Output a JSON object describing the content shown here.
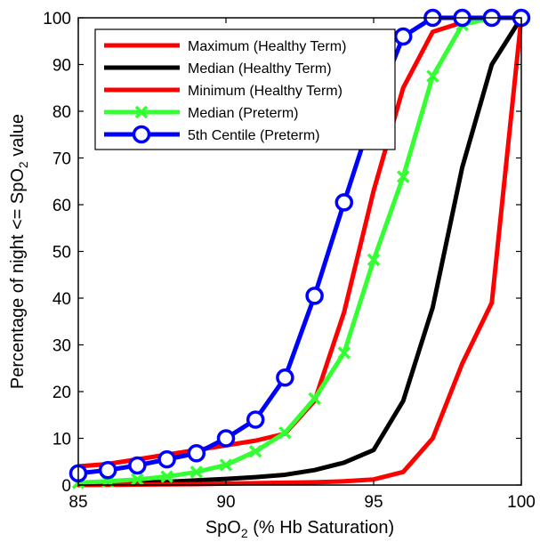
{
  "chart_data": {
    "type": "line",
    "title": "",
    "xlabel": "SpO",
    "xlabel_sub": "2",
    "xlabel_suffix": " (% Hb Saturation)",
    "ylabel_prefix": "Percentage of night <= SpO",
    "ylabel_sub": "2",
    "ylabel_suffix": " value",
    "xlim": [
      85,
      100
    ],
    "ylim": [
      0,
      100
    ],
    "xticks": [
      85,
      90,
      95,
      100
    ],
    "yticks": [
      0,
      10,
      20,
      30,
      40,
      50,
      60,
      70,
      80,
      90,
      100
    ],
    "grid": false,
    "legend_position": "top-left",
    "x": [
      85,
      86,
      87,
      88,
      89,
      90,
      91,
      92,
      93,
      94,
      95,
      96,
      97,
      98,
      99,
      100
    ],
    "series": [
      {
        "name": "Maximum (Healthy Term)",
        "color": "#ff0000",
        "marker": "none",
        "values": [
          4,
          4.5,
          5.5,
          6.5,
          7.5,
          8.5,
          9.5,
          11,
          18,
          37,
          63,
          85,
          97,
          99,
          100,
          100
        ]
      },
      {
        "name": "Median (Healthy Term)",
        "color": "#000000",
        "marker": "none",
        "values": [
          0.2,
          0.3,
          0.5,
          0.7,
          1,
          1.3,
          1.7,
          2.2,
          3.2,
          4.8,
          7.5,
          18,
          38,
          68,
          90,
          100
        ]
      },
      {
        "name": "Minimum (Healthy Term)",
        "color": "#ff0000",
        "marker": "none",
        "values": [
          0,
          0.05,
          0.1,
          0.15,
          0.2,
          0.3,
          0.4,
          0.5,
          0.6,
          0.8,
          1.2,
          2.8,
          10,
          26,
          39,
          100
        ]
      },
      {
        "name": "Median (Preterm)",
        "color": "#33ff33",
        "marker": "x",
        "values": [
          0.5,
          0.8,
          1.2,
          1.8,
          2.8,
          4.3,
          7.2,
          11.2,
          18.5,
          28.3,
          48.2,
          66,
          87.5,
          98.5,
          100,
          100
        ]
      },
      {
        "name": "5th Centile (Preterm)",
        "color": "#0000ff",
        "marker": "o",
        "values": [
          2.5,
          3.2,
          4.2,
          5.5,
          6.8,
          10,
          14,
          23,
          40.5,
          60.5,
          80,
          96,
          100,
          100,
          100,
          100
        ]
      }
    ]
  }
}
